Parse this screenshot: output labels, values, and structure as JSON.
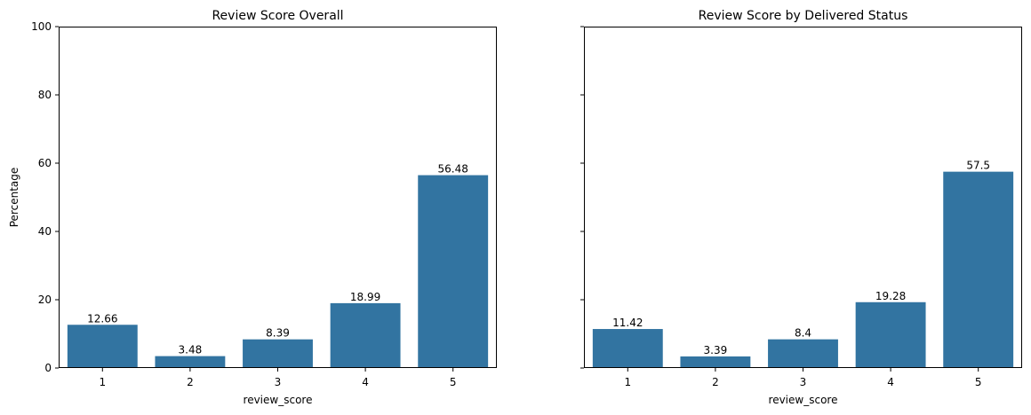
{
  "chart_data": [
    {
      "type": "bar",
      "title": "Review Score Overall",
      "xlabel": "review_score",
      "ylabel": "Percentage",
      "categories": [
        "1",
        "2",
        "3",
        "4",
        "5"
      ],
      "values": [
        12.66,
        3.48,
        8.39,
        18.99,
        56.48
      ],
      "data_labels": [
        "12.66",
        "3.48",
        "8.39",
        "18.99",
        "56.48"
      ],
      "ylim": [
        0,
        100
      ],
      "yticks": [
        "0",
        "20",
        "40",
        "60",
        "80",
        "100"
      ],
      "color": "#3274a1"
    },
    {
      "type": "bar",
      "title": "Review Score by Delivered Status",
      "xlabel": "review_score",
      "ylabel": "",
      "categories": [
        "1",
        "2",
        "3",
        "4",
        "5"
      ],
      "values": [
        11.42,
        3.39,
        8.4,
        19.28,
        57.5
      ],
      "data_labels": [
        "11.42",
        "3.39",
        "8.4",
        "19.28",
        "57.5"
      ],
      "ylim": [
        0,
        100
      ],
      "yticks": [
        "",
        "",
        "",
        "",
        "",
        ""
      ],
      "color": "#3274a1"
    }
  ]
}
